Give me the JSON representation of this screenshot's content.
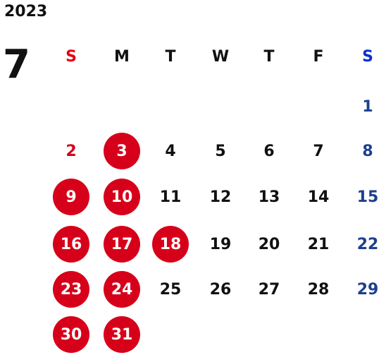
{
  "calendar": {
    "year": "2023",
    "month": "7",
    "weekdays": [
      "S",
      "M",
      "T",
      "W",
      "T",
      "F",
      "S"
    ],
    "first_weekday_index": 6,
    "days_in_month": 31,
    "highlighted_days": [
      3,
      9,
      10,
      16,
      17,
      18,
      23,
      24,
      30,
      31
    ],
    "colors": {
      "holiday_bg": "#d7001a",
      "sunday_text": "#d7001a",
      "saturday_text": "#1e3f8f",
      "sunday_header": "#e60012",
      "saturday_header": "#0a2fd0",
      "default_text": "#111111"
    }
  }
}
